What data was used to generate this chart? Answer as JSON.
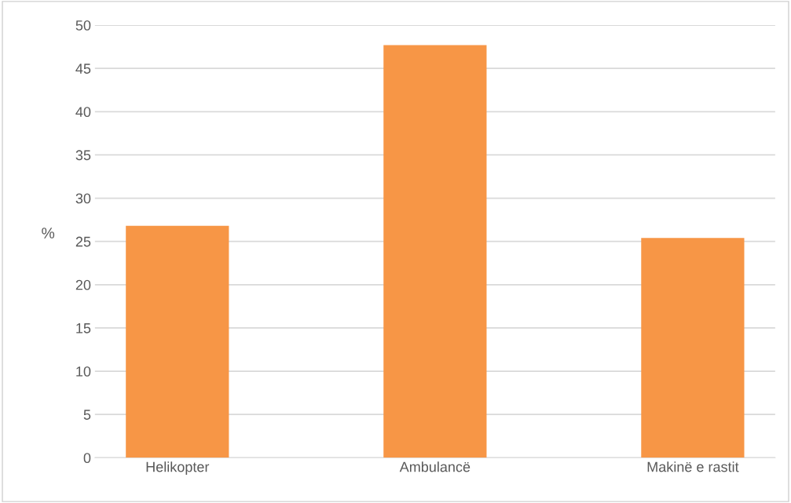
{
  "chart_data": {
    "type": "bar",
    "ylabel": "%",
    "categories": [
      "Helikopter",
      "Ambulancë",
      "Makinë e rastit"
    ],
    "values": [
      26.8,
      47.7,
      25.4
    ],
    "color": "#f79646",
    "ylim": [
      0,
      50
    ],
    "yticks": [
      0,
      5,
      10,
      15,
      20,
      25,
      30,
      35,
      40,
      45,
      50
    ],
    "grid": "y",
    "legend": false
  }
}
